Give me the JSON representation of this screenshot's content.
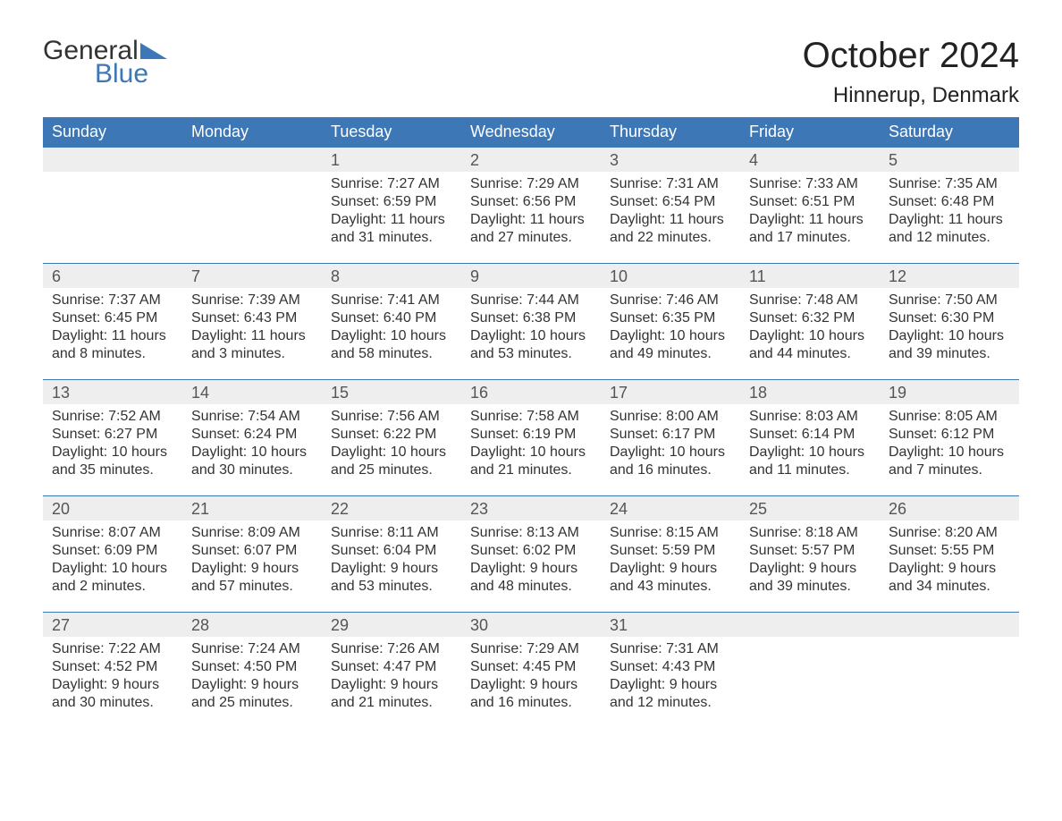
{
  "brand": {
    "word1": "General",
    "word2": "Blue",
    "logo_color": "#3d77b6",
    "text_color": "#333333"
  },
  "header": {
    "title": "October 2024",
    "location": "Hinnerup, Denmark",
    "title_fontsize": 40,
    "location_fontsize": 24
  },
  "calendar": {
    "type": "table",
    "header_bg": "#3d77b6",
    "header_text_color": "#ffffff",
    "daynum_bg": "#eeeeee",
    "row_border_color": "#3d77b6",
    "body_text_color": "#333333",
    "columns": [
      "Sunday",
      "Monday",
      "Tuesday",
      "Wednesday",
      "Thursday",
      "Friday",
      "Saturday"
    ],
    "weeks": [
      [
        {
          "num": "",
          "sunrise": "",
          "sunset": "",
          "daylight1": "",
          "daylight2": ""
        },
        {
          "num": "",
          "sunrise": "",
          "sunset": "",
          "daylight1": "",
          "daylight2": ""
        },
        {
          "num": "1",
          "sunrise": "Sunrise: 7:27 AM",
          "sunset": "Sunset: 6:59 PM",
          "daylight1": "Daylight: 11 hours",
          "daylight2": "and 31 minutes."
        },
        {
          "num": "2",
          "sunrise": "Sunrise: 7:29 AM",
          "sunset": "Sunset: 6:56 PM",
          "daylight1": "Daylight: 11 hours",
          "daylight2": "and 27 minutes."
        },
        {
          "num": "3",
          "sunrise": "Sunrise: 7:31 AM",
          "sunset": "Sunset: 6:54 PM",
          "daylight1": "Daylight: 11 hours",
          "daylight2": "and 22 minutes."
        },
        {
          "num": "4",
          "sunrise": "Sunrise: 7:33 AM",
          "sunset": "Sunset: 6:51 PM",
          "daylight1": "Daylight: 11 hours",
          "daylight2": "and 17 minutes."
        },
        {
          "num": "5",
          "sunrise": "Sunrise: 7:35 AM",
          "sunset": "Sunset: 6:48 PM",
          "daylight1": "Daylight: 11 hours",
          "daylight2": "and 12 minutes."
        }
      ],
      [
        {
          "num": "6",
          "sunrise": "Sunrise: 7:37 AM",
          "sunset": "Sunset: 6:45 PM",
          "daylight1": "Daylight: 11 hours",
          "daylight2": "and 8 minutes."
        },
        {
          "num": "7",
          "sunrise": "Sunrise: 7:39 AM",
          "sunset": "Sunset: 6:43 PM",
          "daylight1": "Daylight: 11 hours",
          "daylight2": "and 3 minutes."
        },
        {
          "num": "8",
          "sunrise": "Sunrise: 7:41 AM",
          "sunset": "Sunset: 6:40 PM",
          "daylight1": "Daylight: 10 hours",
          "daylight2": "and 58 minutes."
        },
        {
          "num": "9",
          "sunrise": "Sunrise: 7:44 AM",
          "sunset": "Sunset: 6:38 PM",
          "daylight1": "Daylight: 10 hours",
          "daylight2": "and 53 minutes."
        },
        {
          "num": "10",
          "sunrise": "Sunrise: 7:46 AM",
          "sunset": "Sunset: 6:35 PM",
          "daylight1": "Daylight: 10 hours",
          "daylight2": "and 49 minutes."
        },
        {
          "num": "11",
          "sunrise": "Sunrise: 7:48 AM",
          "sunset": "Sunset: 6:32 PM",
          "daylight1": "Daylight: 10 hours",
          "daylight2": "and 44 minutes."
        },
        {
          "num": "12",
          "sunrise": "Sunrise: 7:50 AM",
          "sunset": "Sunset: 6:30 PM",
          "daylight1": "Daylight: 10 hours",
          "daylight2": "and 39 minutes."
        }
      ],
      [
        {
          "num": "13",
          "sunrise": "Sunrise: 7:52 AM",
          "sunset": "Sunset: 6:27 PM",
          "daylight1": "Daylight: 10 hours",
          "daylight2": "and 35 minutes."
        },
        {
          "num": "14",
          "sunrise": "Sunrise: 7:54 AM",
          "sunset": "Sunset: 6:24 PM",
          "daylight1": "Daylight: 10 hours",
          "daylight2": "and 30 minutes."
        },
        {
          "num": "15",
          "sunrise": "Sunrise: 7:56 AM",
          "sunset": "Sunset: 6:22 PM",
          "daylight1": "Daylight: 10 hours",
          "daylight2": "and 25 minutes."
        },
        {
          "num": "16",
          "sunrise": "Sunrise: 7:58 AM",
          "sunset": "Sunset: 6:19 PM",
          "daylight1": "Daylight: 10 hours",
          "daylight2": "and 21 minutes."
        },
        {
          "num": "17",
          "sunrise": "Sunrise: 8:00 AM",
          "sunset": "Sunset: 6:17 PM",
          "daylight1": "Daylight: 10 hours",
          "daylight2": "and 16 minutes."
        },
        {
          "num": "18",
          "sunrise": "Sunrise: 8:03 AM",
          "sunset": "Sunset: 6:14 PM",
          "daylight1": "Daylight: 10 hours",
          "daylight2": "and 11 minutes."
        },
        {
          "num": "19",
          "sunrise": "Sunrise: 8:05 AM",
          "sunset": "Sunset: 6:12 PM",
          "daylight1": "Daylight: 10 hours",
          "daylight2": "and 7 minutes."
        }
      ],
      [
        {
          "num": "20",
          "sunrise": "Sunrise: 8:07 AM",
          "sunset": "Sunset: 6:09 PM",
          "daylight1": "Daylight: 10 hours",
          "daylight2": "and 2 minutes."
        },
        {
          "num": "21",
          "sunrise": "Sunrise: 8:09 AM",
          "sunset": "Sunset: 6:07 PM",
          "daylight1": "Daylight: 9 hours",
          "daylight2": "and 57 minutes."
        },
        {
          "num": "22",
          "sunrise": "Sunrise: 8:11 AM",
          "sunset": "Sunset: 6:04 PM",
          "daylight1": "Daylight: 9 hours",
          "daylight2": "and 53 minutes."
        },
        {
          "num": "23",
          "sunrise": "Sunrise: 8:13 AM",
          "sunset": "Sunset: 6:02 PM",
          "daylight1": "Daylight: 9 hours",
          "daylight2": "and 48 minutes."
        },
        {
          "num": "24",
          "sunrise": "Sunrise: 8:15 AM",
          "sunset": "Sunset: 5:59 PM",
          "daylight1": "Daylight: 9 hours",
          "daylight2": "and 43 minutes."
        },
        {
          "num": "25",
          "sunrise": "Sunrise: 8:18 AM",
          "sunset": "Sunset: 5:57 PM",
          "daylight1": "Daylight: 9 hours",
          "daylight2": "and 39 minutes."
        },
        {
          "num": "26",
          "sunrise": "Sunrise: 8:20 AM",
          "sunset": "Sunset: 5:55 PM",
          "daylight1": "Daylight: 9 hours",
          "daylight2": "and 34 minutes."
        }
      ],
      [
        {
          "num": "27",
          "sunrise": "Sunrise: 7:22 AM",
          "sunset": "Sunset: 4:52 PM",
          "daylight1": "Daylight: 9 hours",
          "daylight2": "and 30 minutes."
        },
        {
          "num": "28",
          "sunrise": "Sunrise: 7:24 AM",
          "sunset": "Sunset: 4:50 PM",
          "daylight1": "Daylight: 9 hours",
          "daylight2": "and 25 minutes."
        },
        {
          "num": "29",
          "sunrise": "Sunrise: 7:26 AM",
          "sunset": "Sunset: 4:47 PM",
          "daylight1": "Daylight: 9 hours",
          "daylight2": "and 21 minutes."
        },
        {
          "num": "30",
          "sunrise": "Sunrise: 7:29 AM",
          "sunset": "Sunset: 4:45 PM",
          "daylight1": "Daylight: 9 hours",
          "daylight2": "and 16 minutes."
        },
        {
          "num": "31",
          "sunrise": "Sunrise: 7:31 AM",
          "sunset": "Sunset: 4:43 PM",
          "daylight1": "Daylight: 9 hours",
          "daylight2": "and 12 minutes."
        },
        {
          "num": "",
          "sunrise": "",
          "sunset": "",
          "daylight1": "",
          "daylight2": ""
        },
        {
          "num": "",
          "sunrise": "",
          "sunset": "",
          "daylight1": "",
          "daylight2": ""
        }
      ]
    ]
  }
}
